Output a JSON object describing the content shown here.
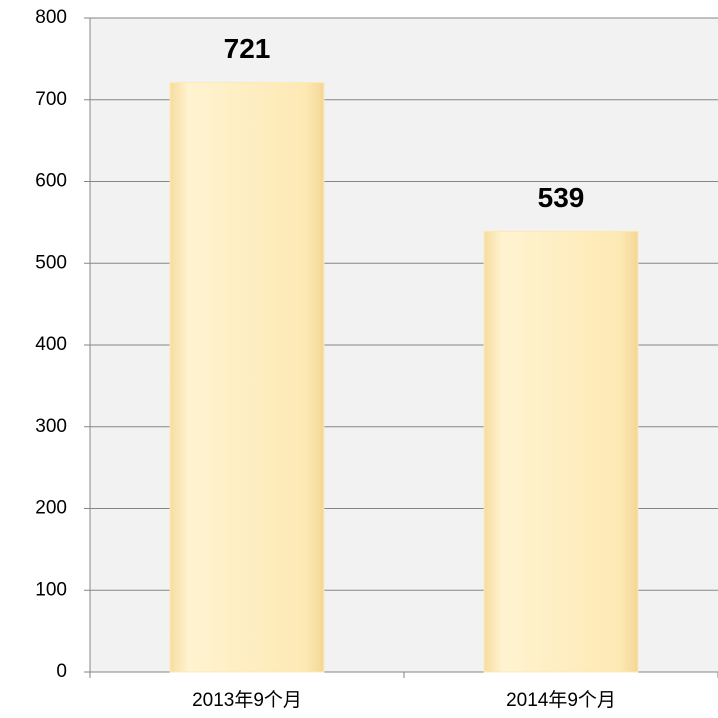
{
  "chart_data": {
    "type": "bar",
    "categories": [
      "2013年9个月",
      "2014年9个月"
    ],
    "values": [
      721,
      539
    ],
    "color": "#fde9b4",
    "ylim": [
      0,
      800
    ],
    "yticks": [
      0,
      100,
      200,
      300,
      400,
      500,
      600,
      700,
      800
    ],
    "grid": true
  }
}
